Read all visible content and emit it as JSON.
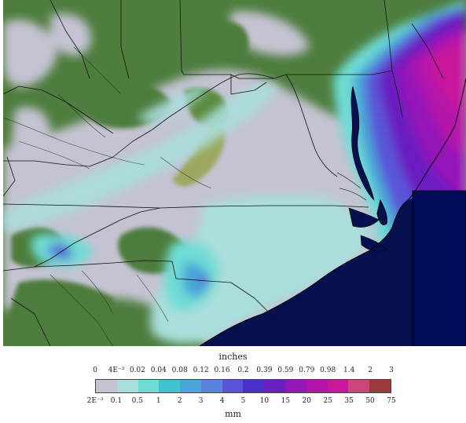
{
  "legend": {
    "top_unit": "inches",
    "bottom_unit": "mm",
    "inch_ticks": [
      "0",
      "4E⁻³",
      "0.02",
      "0.04",
      "0.08",
      "0.12",
      "0.16",
      "0.2",
      "0.39",
      "0.59",
      "0.79",
      "0.98",
      "1.4",
      "2",
      "3"
    ],
    "mm_ticks": [
      "2E⁻³",
      "0.1",
      "0.5",
      "1",
      "2",
      "3",
      "4",
      "5",
      "10",
      "15",
      "20",
      "25",
      "35",
      "50",
      "75"
    ],
    "colors": [
      "#c4c3d2",
      "#a9dedc",
      "#6fdcd4",
      "#40c3cf",
      "#4aa5d8",
      "#5a84dc",
      "#5a55d8",
      "#4b2fc9",
      "#6a1fc0",
      "#9418b8",
      "#b414aa",
      "#c8189c",
      "#c8467a",
      "#9a3a3a"
    ]
  },
  "map": {
    "land_color": "#4e7d3e",
    "ocean_color": "#07104e",
    "inset_color": "#020b57"
  }
}
